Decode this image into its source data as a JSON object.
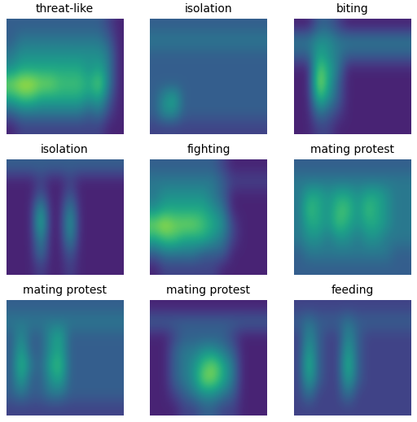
{
  "chart_data": [
    {
      "type": "heatmap",
      "title": "threat-like",
      "color": "viridis",
      "color_range": [
        0,
        1
      ],
      "tick_labels": false,
      "cells": [
        [
          0.3,
          0.3,
          0.3,
          0.3,
          0.3,
          0.3,
          0.3,
          0.3,
          0.3,
          0.3,
          0.2,
          0.1
        ],
        [
          0.3,
          0.4,
          0.4,
          0.4,
          0.4,
          0.4,
          0.4,
          0.4,
          0.4,
          0.4,
          0.3,
          0.1
        ],
        [
          0.4,
          0.5,
          0.5,
          0.5,
          0.5,
          0.5,
          0.5,
          0.5,
          0.5,
          0.5,
          0.4,
          0.1
        ],
        [
          0.5,
          0.6,
          0.6,
          0.6,
          0.6,
          0.6,
          0.6,
          0.6,
          0.5,
          0.6,
          0.4,
          0.1
        ],
        [
          0.8,
          0.9,
          0.9,
          0.8,
          0.8,
          0.7,
          0.7,
          0.7,
          0.6,
          0.8,
          0.4,
          0.1
        ],
        [
          0.6,
          0.7,
          0.7,
          0.6,
          0.6,
          0.6,
          0.6,
          0.6,
          0.5,
          0.6,
          0.3,
          0.1
        ],
        [
          0.3,
          0.4,
          0.4,
          0.4,
          0.4,
          0.4,
          0.4,
          0.4,
          0.3,
          0.4,
          0.2,
          0.1
        ],
        [
          0.1,
          0.2,
          0.2,
          0.2,
          0.2,
          0.2,
          0.2,
          0.2,
          0.2,
          0.2,
          0.1,
          0.1
        ]
      ]
    },
    {
      "type": "heatmap",
      "title": "isolation",
      "color": "viridis",
      "color_range": [
        0,
        1
      ],
      "tick_labels": false,
      "cells": [
        [
          0.3,
          0.3,
          0.3,
          0.3,
          0.3,
          0.3,
          0.3,
          0.3,
          0.3,
          0.3,
          0.3,
          0.3
        ],
        [
          0.4,
          0.4,
          0.4,
          0.4,
          0.4,
          0.4,
          0.4,
          0.4,
          0.4,
          0.4,
          0.4,
          0.4
        ],
        [
          0.3,
          0.3,
          0.3,
          0.3,
          0.3,
          0.3,
          0.3,
          0.3,
          0.3,
          0.3,
          0.3,
          0.3
        ],
        [
          0.3,
          0.3,
          0.3,
          0.3,
          0.3,
          0.3,
          0.3,
          0.3,
          0.3,
          0.3,
          0.3,
          0.3
        ],
        [
          0.3,
          0.3,
          0.3,
          0.3,
          0.3,
          0.3,
          0.3,
          0.3,
          0.3,
          0.3,
          0.3,
          0.3
        ],
        [
          0.3,
          0.5,
          0.6,
          0.3,
          0.3,
          0.3,
          0.3,
          0.3,
          0.3,
          0.3,
          0.3,
          0.3
        ],
        [
          0.3,
          0.5,
          0.5,
          0.3,
          0.3,
          0.3,
          0.3,
          0.3,
          0.3,
          0.3,
          0.3,
          0.3
        ],
        [
          0.2,
          0.2,
          0.2,
          0.2,
          0.2,
          0.2,
          0.2,
          0.2,
          0.2,
          0.2,
          0.2,
          0.2
        ]
      ]
    },
    {
      "type": "heatmap",
      "title": "biting",
      "color": "viridis",
      "color_range": [
        0,
        1
      ],
      "tick_labels": false,
      "cells": [
        [
          0.1,
          0.1,
          0.3,
          0.3,
          0.2,
          0.1,
          0.1,
          0.1,
          0.1,
          0.1,
          0.1,
          0.1
        ],
        [
          0.4,
          0.4,
          0.5,
          0.5,
          0.4,
          0.4,
          0.4,
          0.4,
          0.4,
          0.4,
          0.4,
          0.4
        ],
        [
          0.3,
          0.3,
          0.6,
          0.5,
          0.4,
          0.3,
          0.3,
          0.3,
          0.3,
          0.3,
          0.3,
          0.3
        ],
        [
          0.1,
          0.1,
          0.8,
          0.6,
          0.4,
          0.1,
          0.1,
          0.1,
          0.1,
          0.1,
          0.1,
          0.1
        ],
        [
          0.1,
          0.1,
          0.9,
          0.6,
          0.3,
          0.1,
          0.1,
          0.1,
          0.1,
          0.1,
          0.1,
          0.1
        ],
        [
          0.1,
          0.1,
          0.7,
          0.5,
          0.3,
          0.1,
          0.1,
          0.1,
          0.1,
          0.1,
          0.1,
          0.1
        ],
        [
          0.1,
          0.1,
          0.4,
          0.3,
          0.2,
          0.1,
          0.1,
          0.1,
          0.1,
          0.1,
          0.1,
          0.1
        ],
        [
          0.1,
          0.1,
          0.2,
          0.2,
          0.1,
          0.1,
          0.1,
          0.1,
          0.1,
          0.1,
          0.1,
          0.1
        ]
      ]
    },
    {
      "type": "heatmap",
      "title": "isolation",
      "color": "viridis",
      "color_range": [
        0,
        1
      ],
      "tick_labels": false,
      "cells": [
        [
          0.3,
          0.3,
          0.3,
          0.3,
          0.3,
          0.3,
          0.3,
          0.3,
          0.3,
          0.3,
          0.3,
          0.3
        ],
        [
          0.1,
          0.1,
          0.1,
          0.2,
          0.1,
          0.1,
          0.2,
          0.1,
          0.1,
          0.1,
          0.1,
          0.1
        ],
        [
          0.1,
          0.1,
          0.1,
          0.3,
          0.1,
          0.1,
          0.3,
          0.1,
          0.1,
          0.1,
          0.1,
          0.1
        ],
        [
          0.1,
          0.1,
          0.1,
          0.6,
          0.1,
          0.1,
          0.5,
          0.1,
          0.1,
          0.1,
          0.1,
          0.1
        ],
        [
          0.1,
          0.1,
          0.1,
          0.7,
          0.1,
          0.1,
          0.6,
          0.1,
          0.1,
          0.1,
          0.1,
          0.1
        ],
        [
          0.1,
          0.1,
          0.1,
          0.5,
          0.1,
          0.1,
          0.5,
          0.1,
          0.1,
          0.1,
          0.1,
          0.1
        ],
        [
          0.1,
          0.1,
          0.1,
          0.4,
          0.1,
          0.1,
          0.3,
          0.1,
          0.1,
          0.1,
          0.1,
          0.1
        ],
        [
          0.1,
          0.1,
          0.1,
          0.2,
          0.1,
          0.1,
          0.2,
          0.1,
          0.1,
          0.1,
          0.1,
          0.1
        ]
      ]
    },
    {
      "type": "heatmap",
      "title": "fighting",
      "color": "viridis",
      "color_range": [
        0,
        1
      ],
      "tick_labels": false,
      "cells": [
        [
          0.3,
          0.3,
          0.3,
          0.3,
          0.3,
          0.3,
          0.3,
          0.2,
          0.1,
          0.1,
          0.1,
          0.1
        ],
        [
          0.4,
          0.4,
          0.4,
          0.4,
          0.4,
          0.4,
          0.4,
          0.3,
          0.2,
          0.2,
          0.2,
          0.2
        ],
        [
          0.4,
          0.5,
          0.5,
          0.5,
          0.5,
          0.5,
          0.4,
          0.3,
          0.1,
          0.1,
          0.1,
          0.1
        ],
        [
          0.5,
          0.6,
          0.6,
          0.6,
          0.6,
          0.6,
          0.5,
          0.4,
          0.1,
          0.1,
          0.1,
          0.1
        ],
        [
          0.8,
          0.9,
          0.8,
          0.8,
          0.8,
          0.7,
          0.6,
          0.5,
          0.2,
          0.1,
          0.1,
          0.1
        ],
        [
          0.6,
          0.7,
          0.7,
          0.6,
          0.6,
          0.6,
          0.5,
          0.4,
          0.2,
          0.1,
          0.1,
          0.1
        ],
        [
          0.3,
          0.4,
          0.4,
          0.4,
          0.4,
          0.3,
          0.3,
          0.3,
          0.1,
          0.1,
          0.1,
          0.1
        ],
        [
          0.1,
          0.2,
          0.2,
          0.2,
          0.2,
          0.2,
          0.2,
          0.1,
          0.1,
          0.1,
          0.1,
          0.1
        ]
      ]
    },
    {
      "type": "heatmap",
      "title": "mating protest",
      "color": "viridis",
      "color_range": [
        0,
        1
      ],
      "tick_labels": false,
      "cells": [
        [
          0.3,
          0.3,
          0.3,
          0.3,
          0.3,
          0.3,
          0.3,
          0.3,
          0.3,
          0.3,
          0.3,
          0.3
        ],
        [
          0.4,
          0.4,
          0.4,
          0.4,
          0.4,
          0.4,
          0.4,
          0.4,
          0.4,
          0.4,
          0.4,
          0.4
        ],
        [
          0.4,
          0.6,
          0.6,
          0.5,
          0.6,
          0.6,
          0.5,
          0.6,
          0.6,
          0.5,
          0.4,
          0.4
        ],
        [
          0.4,
          0.7,
          0.6,
          0.5,
          0.7,
          0.7,
          0.5,
          0.7,
          0.6,
          0.5,
          0.4,
          0.4
        ],
        [
          0.4,
          0.6,
          0.6,
          0.5,
          0.7,
          0.6,
          0.5,
          0.6,
          0.6,
          0.5,
          0.4,
          0.4
        ],
        [
          0.4,
          0.5,
          0.5,
          0.4,
          0.5,
          0.5,
          0.4,
          0.5,
          0.5,
          0.4,
          0.4,
          0.4
        ],
        [
          0.3,
          0.4,
          0.4,
          0.4,
          0.4,
          0.4,
          0.4,
          0.4,
          0.4,
          0.4,
          0.3,
          0.3
        ],
        [
          0.3,
          0.3,
          0.3,
          0.3,
          0.3,
          0.3,
          0.3,
          0.3,
          0.3,
          0.3,
          0.3,
          0.3
        ]
      ]
    },
    {
      "type": "heatmap",
      "title": "mating protest",
      "color": "viridis",
      "color_range": [
        0,
        1
      ],
      "tick_labels": false,
      "cells": [
        [
          0.3,
          0.3,
          0.3,
          0.3,
          0.3,
          0.3,
          0.3,
          0.3,
          0.3,
          0.3,
          0.3,
          0.3
        ],
        [
          0.4,
          0.4,
          0.4,
          0.4,
          0.4,
          0.4,
          0.4,
          0.4,
          0.4,
          0.4,
          0.4,
          0.4
        ],
        [
          0.3,
          0.5,
          0.3,
          0.3,
          0.5,
          0.6,
          0.3,
          0.3,
          0.3,
          0.3,
          0.3,
          0.3
        ],
        [
          0.3,
          0.6,
          0.3,
          0.3,
          0.5,
          0.6,
          0.3,
          0.3,
          0.3,
          0.3,
          0.3,
          0.3
        ],
        [
          0.3,
          0.7,
          0.4,
          0.3,
          0.6,
          0.7,
          0.3,
          0.3,
          0.3,
          0.3,
          0.3,
          0.3
        ],
        [
          0.3,
          0.6,
          0.3,
          0.3,
          0.5,
          0.6,
          0.3,
          0.3,
          0.3,
          0.3,
          0.3,
          0.3
        ],
        [
          0.3,
          0.4,
          0.3,
          0.3,
          0.4,
          0.4,
          0.3,
          0.3,
          0.3,
          0.3,
          0.3,
          0.3
        ],
        [
          0.2,
          0.2,
          0.2,
          0.2,
          0.2,
          0.2,
          0.2,
          0.2,
          0.2,
          0.2,
          0.2,
          0.2
        ]
      ]
    },
    {
      "type": "heatmap",
      "title": "mating protest",
      "color": "viridis",
      "color_range": [
        0,
        1
      ],
      "tick_labels": false,
      "cells": [
        [
          0.1,
          0.1,
          0.1,
          0.1,
          0.1,
          0.1,
          0.1,
          0.1,
          0.1,
          0.1,
          0.1,
          0.1
        ],
        [
          0.3,
          0.3,
          0.3,
          0.3,
          0.3,
          0.3,
          0.3,
          0.3,
          0.3,
          0.3,
          0.3,
          0.3
        ],
        [
          0.1,
          0.1,
          0.2,
          0.3,
          0.3,
          0.3,
          0.3,
          0.3,
          0.2,
          0.1,
          0.1,
          0.1
        ],
        [
          0.1,
          0.1,
          0.3,
          0.4,
          0.4,
          0.5,
          0.5,
          0.4,
          0.3,
          0.1,
          0.1,
          0.1
        ],
        [
          0.1,
          0.1,
          0.3,
          0.4,
          0.5,
          0.7,
          0.8,
          0.6,
          0.4,
          0.1,
          0.1,
          0.1
        ],
        [
          0.1,
          0.1,
          0.3,
          0.4,
          0.5,
          0.8,
          0.8,
          0.6,
          0.4,
          0.1,
          0.1,
          0.1
        ],
        [
          0.1,
          0.1,
          0.2,
          0.3,
          0.4,
          0.5,
          0.5,
          0.4,
          0.3,
          0.1,
          0.1,
          0.1
        ],
        [
          0.1,
          0.1,
          0.1,
          0.2,
          0.2,
          0.3,
          0.3,
          0.2,
          0.2,
          0.1,
          0.1,
          0.1
        ]
      ]
    },
    {
      "type": "heatmap",
      "title": "feeding",
      "color": "viridis",
      "color_range": [
        0,
        1
      ],
      "tick_labels": false,
      "cells": [
        [
          0.2,
          0.2,
          0.2,
          0.2,
          0.2,
          0.2,
          0.2,
          0.2,
          0.2,
          0.2,
          0.2,
          0.2
        ],
        [
          0.3,
          0.4,
          0.3,
          0.3,
          0.3,
          0.4,
          0.3,
          0.3,
          0.3,
          0.3,
          0.3,
          0.3
        ],
        [
          0.2,
          0.5,
          0.3,
          0.2,
          0.2,
          0.5,
          0.3,
          0.2,
          0.2,
          0.2,
          0.2,
          0.2
        ],
        [
          0.2,
          0.6,
          0.3,
          0.2,
          0.2,
          0.6,
          0.3,
          0.2,
          0.2,
          0.2,
          0.2,
          0.2
        ],
        [
          0.2,
          0.7,
          0.3,
          0.2,
          0.2,
          0.7,
          0.3,
          0.2,
          0.2,
          0.2,
          0.2,
          0.2
        ],
        [
          0.2,
          0.6,
          0.3,
          0.2,
          0.2,
          0.6,
          0.3,
          0.2,
          0.2,
          0.2,
          0.2,
          0.2
        ],
        [
          0.2,
          0.4,
          0.2,
          0.2,
          0.2,
          0.4,
          0.2,
          0.2,
          0.2,
          0.2,
          0.2,
          0.2
        ],
        [
          0.2,
          0.2,
          0.2,
          0.2,
          0.2,
          0.2,
          0.2,
          0.2,
          0.2,
          0.2,
          0.2,
          0.2
        ]
      ]
    }
  ]
}
